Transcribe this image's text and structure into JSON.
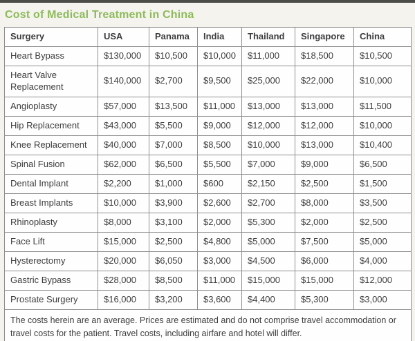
{
  "page": {
    "title": "Cost of Medical Treatment in China",
    "colors": {
      "title_green": "#8dbb5a",
      "top_bar": "#4b4b47",
      "page_background": "#f4f3ee",
      "cell_background": "#fefefe",
      "border_gray": "#8e8e8e",
      "text_dark": "#3d3d3d"
    }
  },
  "chart_data": {
    "type": "table",
    "title": "Cost of Medical Treatment in China",
    "columns": [
      "Surgery",
      "USA",
      "Panama",
      "India",
      "Thailand",
      "Singapore",
      "China"
    ],
    "rows": [
      [
        "Heart Bypass",
        "$130,000",
        "$10,500",
        "$10,000",
        "$11,000",
        "$18,500",
        "$10,500"
      ],
      [
        "Heart Valve Replacement",
        "$140,000",
        "$2,700",
        "$9,500",
        "$25,000",
        "$22,000",
        "$10,000"
      ],
      [
        "Angioplasty",
        "$57,000",
        "$13,500",
        "$11,000",
        "$13,000",
        "$13,000",
        "$11,500"
      ],
      [
        "Hip Replacement",
        "$43,000",
        "$5,500",
        "$9,000",
        "$12,000",
        "$12,000",
        "$10,000"
      ],
      [
        "Knee Replacement",
        "$40,000",
        "$7,000",
        "$8,500",
        "$10,000",
        "$13,000",
        "$10,400"
      ],
      [
        "Spinal Fusion",
        "$62,000",
        "$6,500",
        "$5,500",
        "$7,000",
        "$9,000",
        "$6,500"
      ],
      [
        "Dental Implant",
        "$2,200",
        "$1,000",
        "$600",
        "$2,150",
        "$2,500",
        "$1,500"
      ],
      [
        "Breast Implants",
        "$10,000",
        "$3,900",
        "$2,600",
        "$2,700",
        "$8,000",
        "$3,500"
      ],
      [
        "Rhinoplasty",
        "$8,000",
        "$3,100",
        "$2,000",
        "$5,300",
        "$2,000",
        "$2,500"
      ],
      [
        "Face Lift",
        "$15,000",
        "$2,500",
        "$4,800",
        "$5,000",
        "$7,500",
        "$5,000"
      ],
      [
        "Hysterectomy",
        "$20,000",
        "$6,050",
        "$3,000",
        "$4,500",
        "$6,000",
        "$4,000"
      ],
      [
        "Gastric Bypass",
        "$28,000",
        "$8,500",
        "$11,000",
        "$15,000",
        "$15,000",
        "$12,000"
      ],
      [
        "Prostate Surgery",
        "$16,000",
        "$3,200",
        "$3,600",
        "$4,400",
        "$5,300",
        "$3,000"
      ]
    ],
    "footnote": "The costs herein are an average. Prices are estimated and do not comprise travel accommodation or travel costs for the patient. Travel costs, including airfare and hotel will differ."
  }
}
